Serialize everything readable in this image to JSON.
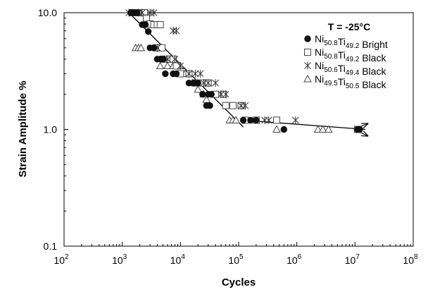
{
  "chart_data": {
    "type": "scatter",
    "title": "",
    "xlabel": "Cycles",
    "ylabel": "Strain Amplitude %",
    "x_scale": "log",
    "y_scale": "log",
    "xlim": [
      100,
      100000000
    ],
    "ylim": [
      0.1,
      10
    ],
    "x_ticks": [
      {
        "base": "10",
        "exp": "2",
        "value": 100
      },
      {
        "base": "10",
        "exp": "3",
        "value": 1000
      },
      {
        "base": "10",
        "exp": "4",
        "value": 10000
      },
      {
        "base": "10",
        "exp": "5",
        "value": 100000
      },
      {
        "base": "10",
        "exp": "6",
        "value": 1000000
      },
      {
        "base": "10",
        "exp": "7",
        "value": 10000000
      },
      {
        "base": "10",
        "exp": "8",
        "value": 100000000
      }
    ],
    "y_ticks": [
      {
        "label": "10.0",
        "value": 10
      },
      {
        "label": "1.0",
        "value": 1
      },
      {
        "label": "0.1",
        "value": 0.1
      }
    ],
    "grid": false,
    "legend_position": "top-right",
    "legend_title": "T = -25°C",
    "series": [
      {
        "name_parts": [
          [
            "Ni",
            ""
          ],
          [
            "50.8",
            "sub"
          ],
          [
            "Ti",
            ""
          ],
          [
            "49.2",
            "sub"
          ],
          [
            " Bright",
            ""
          ]
        ],
        "marker": "circle-filled",
        "points": [
          [
            1400,
            10
          ],
          [
            1600,
            10
          ],
          [
            1800,
            10
          ],
          [
            2200,
            7.9
          ],
          [
            2500,
            7.9
          ],
          [
            2800,
            6.9
          ],
          [
            3000,
            5
          ],
          [
            3500,
            5
          ],
          [
            4000,
            4
          ],
          [
            4500,
            4
          ],
          [
            5000,
            4
          ],
          [
            5500,
            3
          ],
          [
            7500,
            3
          ],
          [
            8500,
            3
          ],
          [
            14000,
            2.5
          ],
          [
            17000,
            2.5
          ],
          [
            20000,
            2.5
          ],
          [
            24000,
            2
          ],
          [
            30000,
            2
          ],
          [
            34000,
            2
          ],
          [
            28000,
            1.6
          ],
          [
            32000,
            1.6
          ],
          [
            120000,
            1.2
          ],
          [
            160000,
            1.2
          ],
          [
            200000,
            1.2
          ],
          [
            600000,
            1
          ],
          [
            11000000,
            1
          ],
          [
            12000000,
            1
          ]
        ],
        "trend_lines": [
          [
            [
              1300,
              10
            ],
            [
              120000,
              1.05
            ]
          ],
          [
            [
              120000,
              1.2
            ],
            [
              15000000,
              1
            ]
          ]
        ]
      },
      {
        "name_parts": [
          [
            "Ni",
            ""
          ],
          [
            "50.8",
            "sub"
          ],
          [
            "Ti",
            ""
          ],
          [
            "49.2",
            "sub"
          ],
          [
            " Black",
            ""
          ]
        ],
        "marker": "square-open",
        "points": [
          [
            1500,
            10
          ],
          [
            2000,
            10
          ],
          [
            2400,
            10
          ],
          [
            2600,
            9
          ],
          [
            3000,
            8
          ],
          [
            3500,
            7.9
          ],
          [
            4000,
            7.9
          ],
          [
            4500,
            7.9
          ],
          [
            3800,
            5
          ],
          [
            4800,
            5
          ],
          [
            5200,
            4
          ],
          [
            6500,
            4
          ],
          [
            7500,
            4
          ],
          [
            8500,
            3.5
          ],
          [
            10000,
            3
          ],
          [
            14000,
            3
          ],
          [
            18000,
            2.5
          ],
          [
            24000,
            2.5
          ],
          [
            30000,
            2.5
          ],
          [
            40000,
            2
          ],
          [
            55000,
            2
          ],
          [
            60000,
            1.6
          ],
          [
            80000,
            1.6
          ],
          [
            110000,
            1.6
          ],
          [
            130000,
            1.2
          ],
          [
            200000,
            1.2
          ],
          [
            450000,
            1.2
          ],
          [
            11000000,
            1
          ]
        ],
        "trend_lines": []
      },
      {
        "name_parts": [
          [
            "Ni",
            ""
          ],
          [
            "50.6",
            "sub"
          ],
          [
            "Ti",
            ""
          ],
          [
            "49.4",
            "sub"
          ],
          [
            " Black",
            ""
          ]
        ],
        "marker": "asterisk",
        "points": [
          [
            1300,
            10
          ],
          [
            1500,
            10
          ],
          [
            1900,
            10
          ],
          [
            2200,
            10
          ],
          [
            3000,
            10
          ],
          [
            3500,
            10
          ],
          [
            7500,
            7
          ],
          [
            8500,
            7
          ],
          [
            4000,
            5
          ],
          [
            6000,
            4
          ],
          [
            8000,
            4
          ],
          [
            10000,
            3.5
          ],
          [
            14000,
            3
          ],
          [
            18000,
            3
          ],
          [
            22000,
            3
          ],
          [
            25000,
            2.5
          ],
          [
            30000,
            2.5
          ],
          [
            40000,
            2.5
          ],
          [
            50000,
            2
          ],
          [
            60000,
            2
          ],
          [
            110000,
            1.6
          ],
          [
            130000,
            1.6
          ],
          [
            280000,
            1.2
          ],
          [
            330000,
            1.2
          ],
          [
            950000,
            1.2
          ]
        ],
        "trend_lines": []
      },
      {
        "name_parts": [
          [
            "Ni",
            ""
          ],
          [
            "49.5",
            "sub"
          ],
          [
            "Ti",
            ""
          ],
          [
            "50.5",
            "sub"
          ],
          [
            " Black",
            ""
          ]
        ],
        "marker": "triangle-open",
        "points": [
          [
            1700,
            5
          ],
          [
            1900,
            5
          ],
          [
            2100,
            5
          ],
          [
            4700,
            5
          ],
          [
            4500,
            3.5
          ],
          [
            6000,
            3.5
          ],
          [
            7500,
            3.5
          ],
          [
            10000,
            3.5
          ],
          [
            12000,
            3
          ],
          [
            14000,
            3
          ],
          [
            16000,
            2.5
          ],
          [
            20000,
            2.2
          ],
          [
            25000,
            2
          ],
          [
            28000,
            1.8
          ],
          [
            70000,
            1.2
          ],
          [
            80000,
            1.2
          ],
          [
            90000,
            1.2
          ],
          [
            450000,
            1
          ],
          [
            2300000,
            1
          ],
          [
            2800000,
            1
          ],
          [
            3500000,
            1
          ]
        ],
        "trend_lines": []
      }
    ]
  }
}
